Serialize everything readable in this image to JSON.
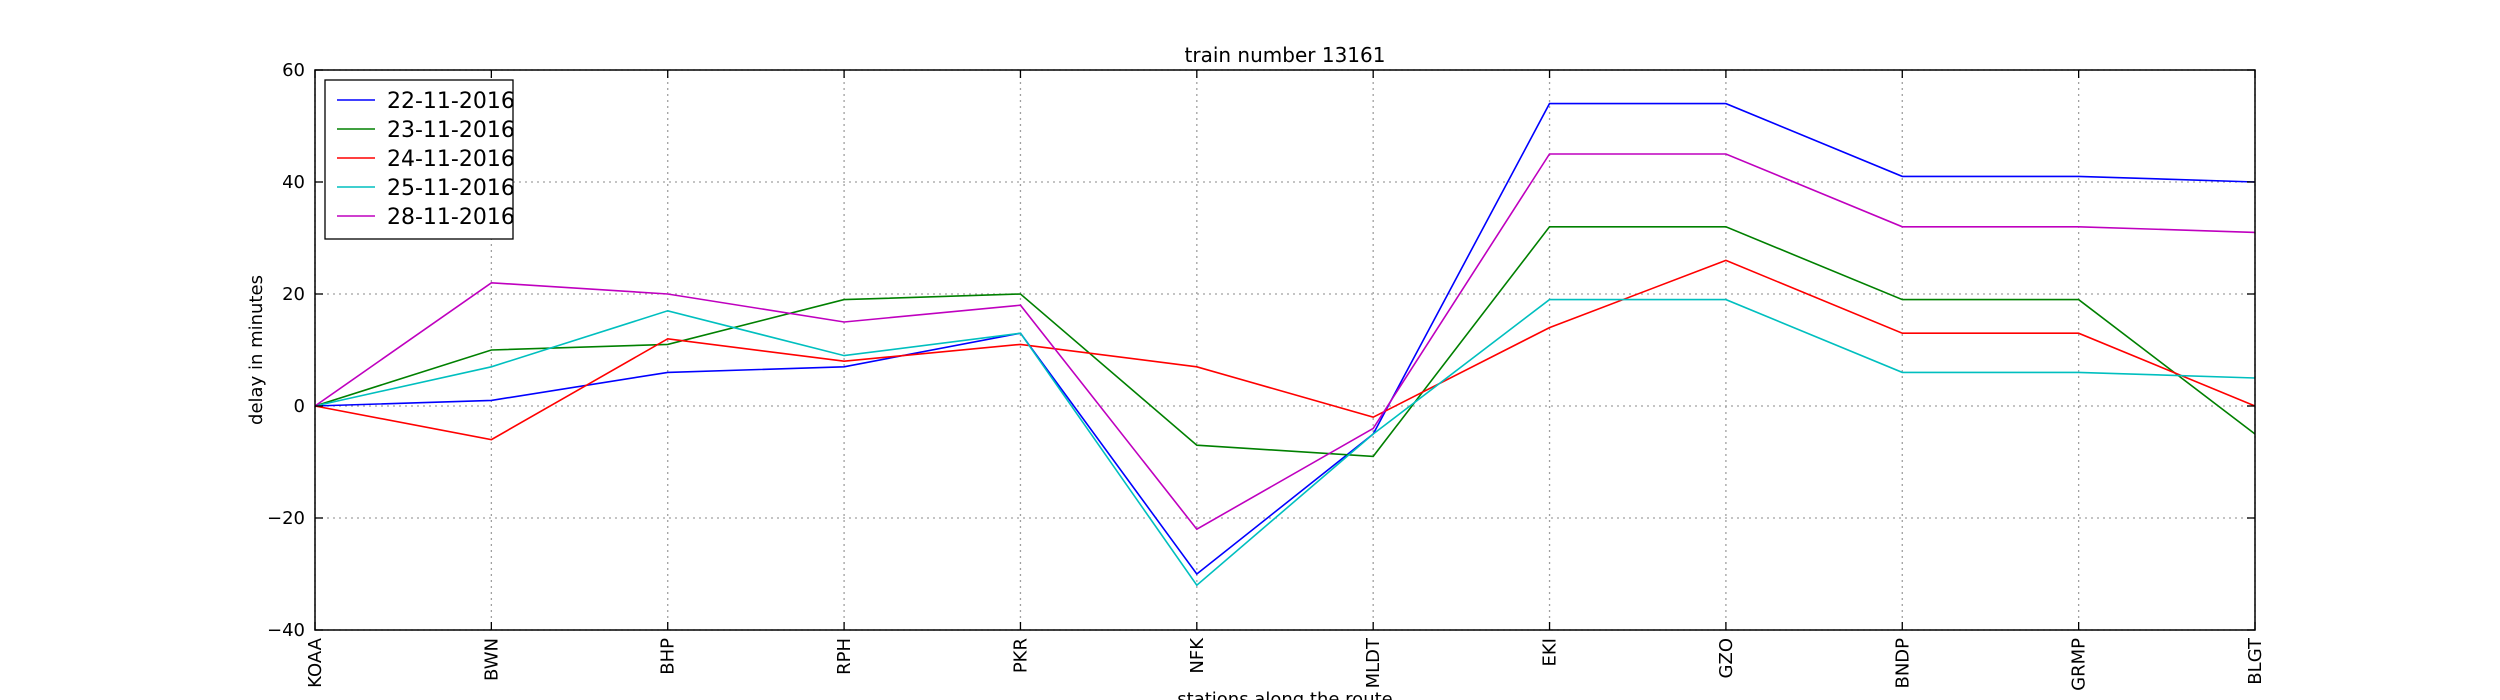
{
  "chart_data": {
    "type": "line",
    "title": "train number 13161",
    "xlabel": "stations along the route",
    "ylabel": "delay in minutes",
    "categories": [
      "KOAA",
      "BWN",
      "BHP",
      "RPH",
      "PKR",
      "NFK",
      "MLDT",
      "EKI",
      "GZO",
      "BNDP",
      "GRMP",
      "BLGT"
    ],
    "ylim": [
      -40,
      60
    ],
    "yticks": [
      -40,
      -20,
      0,
      20,
      40,
      60
    ],
    "ytick_labels": [
      "−40",
      "−20",
      "0",
      "20",
      "40",
      "60"
    ],
    "grid": true,
    "legend_position": "top-left",
    "series": [
      {
        "name": "22-11-2016",
        "color": "#0000ff",
        "values": [
          0,
          1,
          6,
          7,
          13,
          -30,
          -5,
          54,
          54,
          41,
          41,
          40
        ]
      },
      {
        "name": "23-11-2016",
        "color": "#008000",
        "values": [
          0,
          10,
          11,
          19,
          20,
          -7,
          -9,
          32,
          32,
          19,
          19,
          -5
        ]
      },
      {
        "name": "24-11-2016",
        "color": "#ff0000",
        "values": [
          0,
          -6,
          12,
          8,
          11,
          7,
          -2,
          14,
          26,
          13,
          13,
          0
        ]
      },
      {
        "name": "25-11-2016",
        "color": "#00bfbf",
        "values": [
          0,
          7,
          17,
          9,
          13,
          -32,
          -5,
          19,
          19,
          6,
          6,
          5
        ]
      },
      {
        "name": "28-11-2016",
        "color": "#bf00bf",
        "values": [
          0,
          22,
          20,
          15,
          18,
          -22,
          -4,
          45,
          45,
          32,
          32,
          31
        ]
      }
    ]
  }
}
